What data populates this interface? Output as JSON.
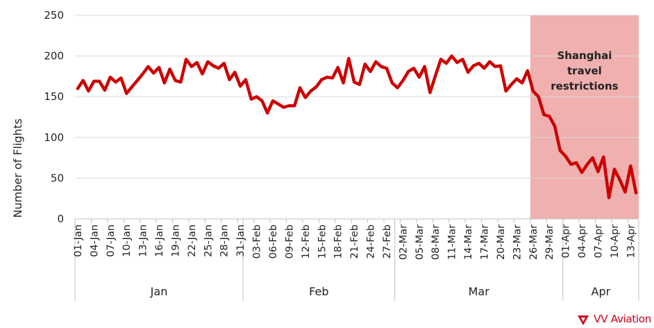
{
  "chart_data": {
    "type": "line",
    "ylabel": "Number of Flights",
    "ylim": [
      0,
      250
    ],
    "yticks": [
      0,
      50,
      100,
      150,
      200,
      250
    ],
    "gridlines": true,
    "series": [
      {
        "color": "#cc0000",
        "x": [
          "2022-01-01",
          "2022-01-02",
          "2022-01-03",
          "2022-01-04",
          "2022-01-05",
          "2022-01-06",
          "2022-01-07",
          "2022-01-08",
          "2022-01-09",
          "2022-01-10",
          "2022-01-11",
          "2022-01-12",
          "2022-01-13",
          "2022-01-14",
          "2022-01-15",
          "2022-01-16",
          "2022-01-17",
          "2022-01-18",
          "2022-01-19",
          "2022-01-20",
          "2022-01-21",
          "2022-01-22",
          "2022-01-23",
          "2022-01-24",
          "2022-01-25",
          "2022-01-26",
          "2022-01-27",
          "2022-01-28",
          "2022-01-29",
          "2022-01-30",
          "2022-01-31",
          "2022-02-01",
          "2022-02-02",
          "2022-02-03",
          "2022-02-04",
          "2022-02-05",
          "2022-02-06",
          "2022-02-07",
          "2022-02-08",
          "2022-02-09",
          "2022-02-10",
          "2022-02-11",
          "2022-02-12",
          "2022-02-13",
          "2022-02-14",
          "2022-02-15",
          "2022-02-16",
          "2022-02-17",
          "2022-02-18",
          "2022-02-19",
          "2022-02-20",
          "2022-02-21",
          "2022-02-22",
          "2022-02-23",
          "2022-02-24",
          "2022-02-25",
          "2022-02-26",
          "2022-02-27",
          "2022-02-28",
          "2022-03-01",
          "2022-03-02",
          "2022-03-03",
          "2022-03-04",
          "2022-03-05",
          "2022-03-06",
          "2022-03-07",
          "2022-03-08",
          "2022-03-09",
          "2022-03-10",
          "2022-03-11",
          "2022-03-12",
          "2022-03-13",
          "2022-03-14",
          "2022-03-15",
          "2022-03-16",
          "2022-03-17",
          "2022-03-18",
          "2022-03-19",
          "2022-03-20",
          "2022-03-21",
          "2022-03-22",
          "2022-03-23",
          "2022-03-24",
          "2022-03-25",
          "2022-03-26",
          "2022-03-27",
          "2022-03-28",
          "2022-03-29",
          "2022-03-30",
          "2022-03-31",
          "2022-04-01",
          "2022-04-02",
          "2022-04-03",
          "2022-04-04",
          "2022-04-05",
          "2022-04-06",
          "2022-04-07",
          "2022-04-08",
          "2022-04-09",
          "2022-04-10",
          "2022-04-11",
          "2022-04-12",
          "2022-04-13",
          "2022-04-14"
        ],
        "values": [
          160,
          170,
          157,
          169,
          169,
          158,
          174,
          168,
          173,
          154,
          162,
          170,
          178,
          187,
          179,
          186,
          167,
          184,
          170,
          168,
          196,
          187,
          192,
          178,
          193,
          188,
          185,
          191,
          171,
          180,
          163,
          171,
          147,
          150,
          145,
          130,
          145,
          141,
          137,
          139,
          139,
          161,
          149,
          157,
          162,
          171,
          174,
          173,
          186,
          167,
          197,
          168,
          165,
          190,
          181,
          193,
          187,
          185,
          167,
          161,
          170,
          181,
          185,
          174,
          187,
          155,
          176,
          196,
          191,
          200,
          192,
          196,
          180,
          188,
          191,
          185,
          193,
          187,
          188,
          157,
          165,
          172,
          167,
          182,
          157,
          150,
          128,
          126,
          114,
          84,
          77,
          67,
          69,
          57,
          67,
          75,
          58,
          76,
          26,
          61,
          48,
          33,
          65,
          32
        ]
      }
    ],
    "date_labels": [
      "01-Jan",
      "04-Jan",
      "07-Jan",
      "10-Jan",
      "13-Jan",
      "16-Jan",
      "19-Jan",
      "22-Jan",
      "25-Jan",
      "28-Jan",
      "31-Jan",
      "03-Feb",
      "06-Feb",
      "09-Feb",
      "12-Feb",
      "15-Feb",
      "18-Feb",
      "21-Feb",
      "24-Feb",
      "27-Feb",
      "02-Mar",
      "05-Mar",
      "08-Mar",
      "11-Mar",
      "14-Mar",
      "17-Mar",
      "20-Mar",
      "23-Mar",
      "26-Mar",
      "29-Mar",
      "01-Apr",
      "04-Apr",
      "07-Apr",
      "10-Apr",
      "13-Apr"
    ],
    "months": [
      {
        "label": "Jan",
        "start": "2022-01-01",
        "end": "2022-01-31"
      },
      {
        "label": "Feb",
        "start": "2022-02-01",
        "end": "2022-02-28"
      },
      {
        "label": "Mar",
        "start": "2022-03-01",
        "end": "2022-03-31"
      },
      {
        "label": "Apr",
        "start": "2022-04-01",
        "end": "2022-04-14"
      }
    ],
    "shaded_region": {
      "start": "2022-03-26",
      "end": "2022-04-14",
      "color": "#f0b0b0",
      "label_lines": [
        "Shanghai",
        "travel",
        "restrictions"
      ]
    }
  },
  "logo": {
    "text": "VV Aviation",
    "color": "#d0021b"
  }
}
